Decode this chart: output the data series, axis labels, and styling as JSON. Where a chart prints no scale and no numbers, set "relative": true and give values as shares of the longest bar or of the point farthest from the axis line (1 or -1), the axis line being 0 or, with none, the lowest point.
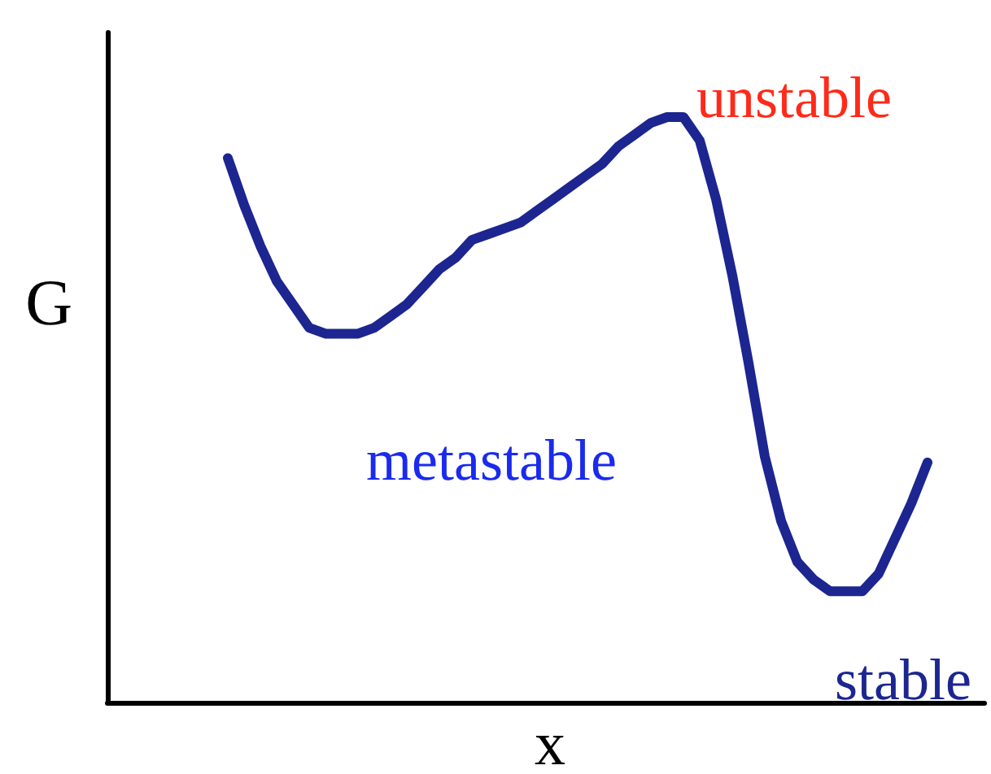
{
  "chart_data": {
    "type": "line",
    "relative": true,
    "xlabel": "x",
    "ylabel": "G",
    "color": "#1c2590",
    "marker": "none",
    "line_style": "solid",
    "categories": [
      null,
      null,
      null,
      null,
      null,
      null,
      null,
      null,
      null,
      null,
      null,
      null,
      null,
      null,
      null,
      null,
      null,
      null,
      null,
      null,
      null,
      null,
      null,
      null,
      null,
      null,
      null,
      null,
      null,
      null,
      null,
      null,
      null,
      null,
      null,
      null,
      null,
      null,
      null,
      null,
      null,
      null,
      null,
      null
    ],
    "values": [
      0.93,
      0.85,
      0.78,
      0.72,
      0.68,
      0.64,
      0.63,
      0.63,
      0.63,
      0.64,
      0.66,
      0.68,
      0.71,
      0.74,
      0.76,
      0.79,
      0.8,
      0.81,
      0.82,
      0.84,
      0.86,
      0.88,
      0.9,
      0.92,
      0.95,
      0.97,
      0.99,
      1,
      1,
      0.96,
      0.86,
      0.73,
      0.58,
      0.42,
      0.31,
      0.24,
      0.21,
      0.19,
      0.19,
      0.19,
      0.22,
      0.28,
      0.34,
      0.41
    ],
    "annotations": [
      "unstable",
      "metastable",
      "stable"
    ]
  }
}
